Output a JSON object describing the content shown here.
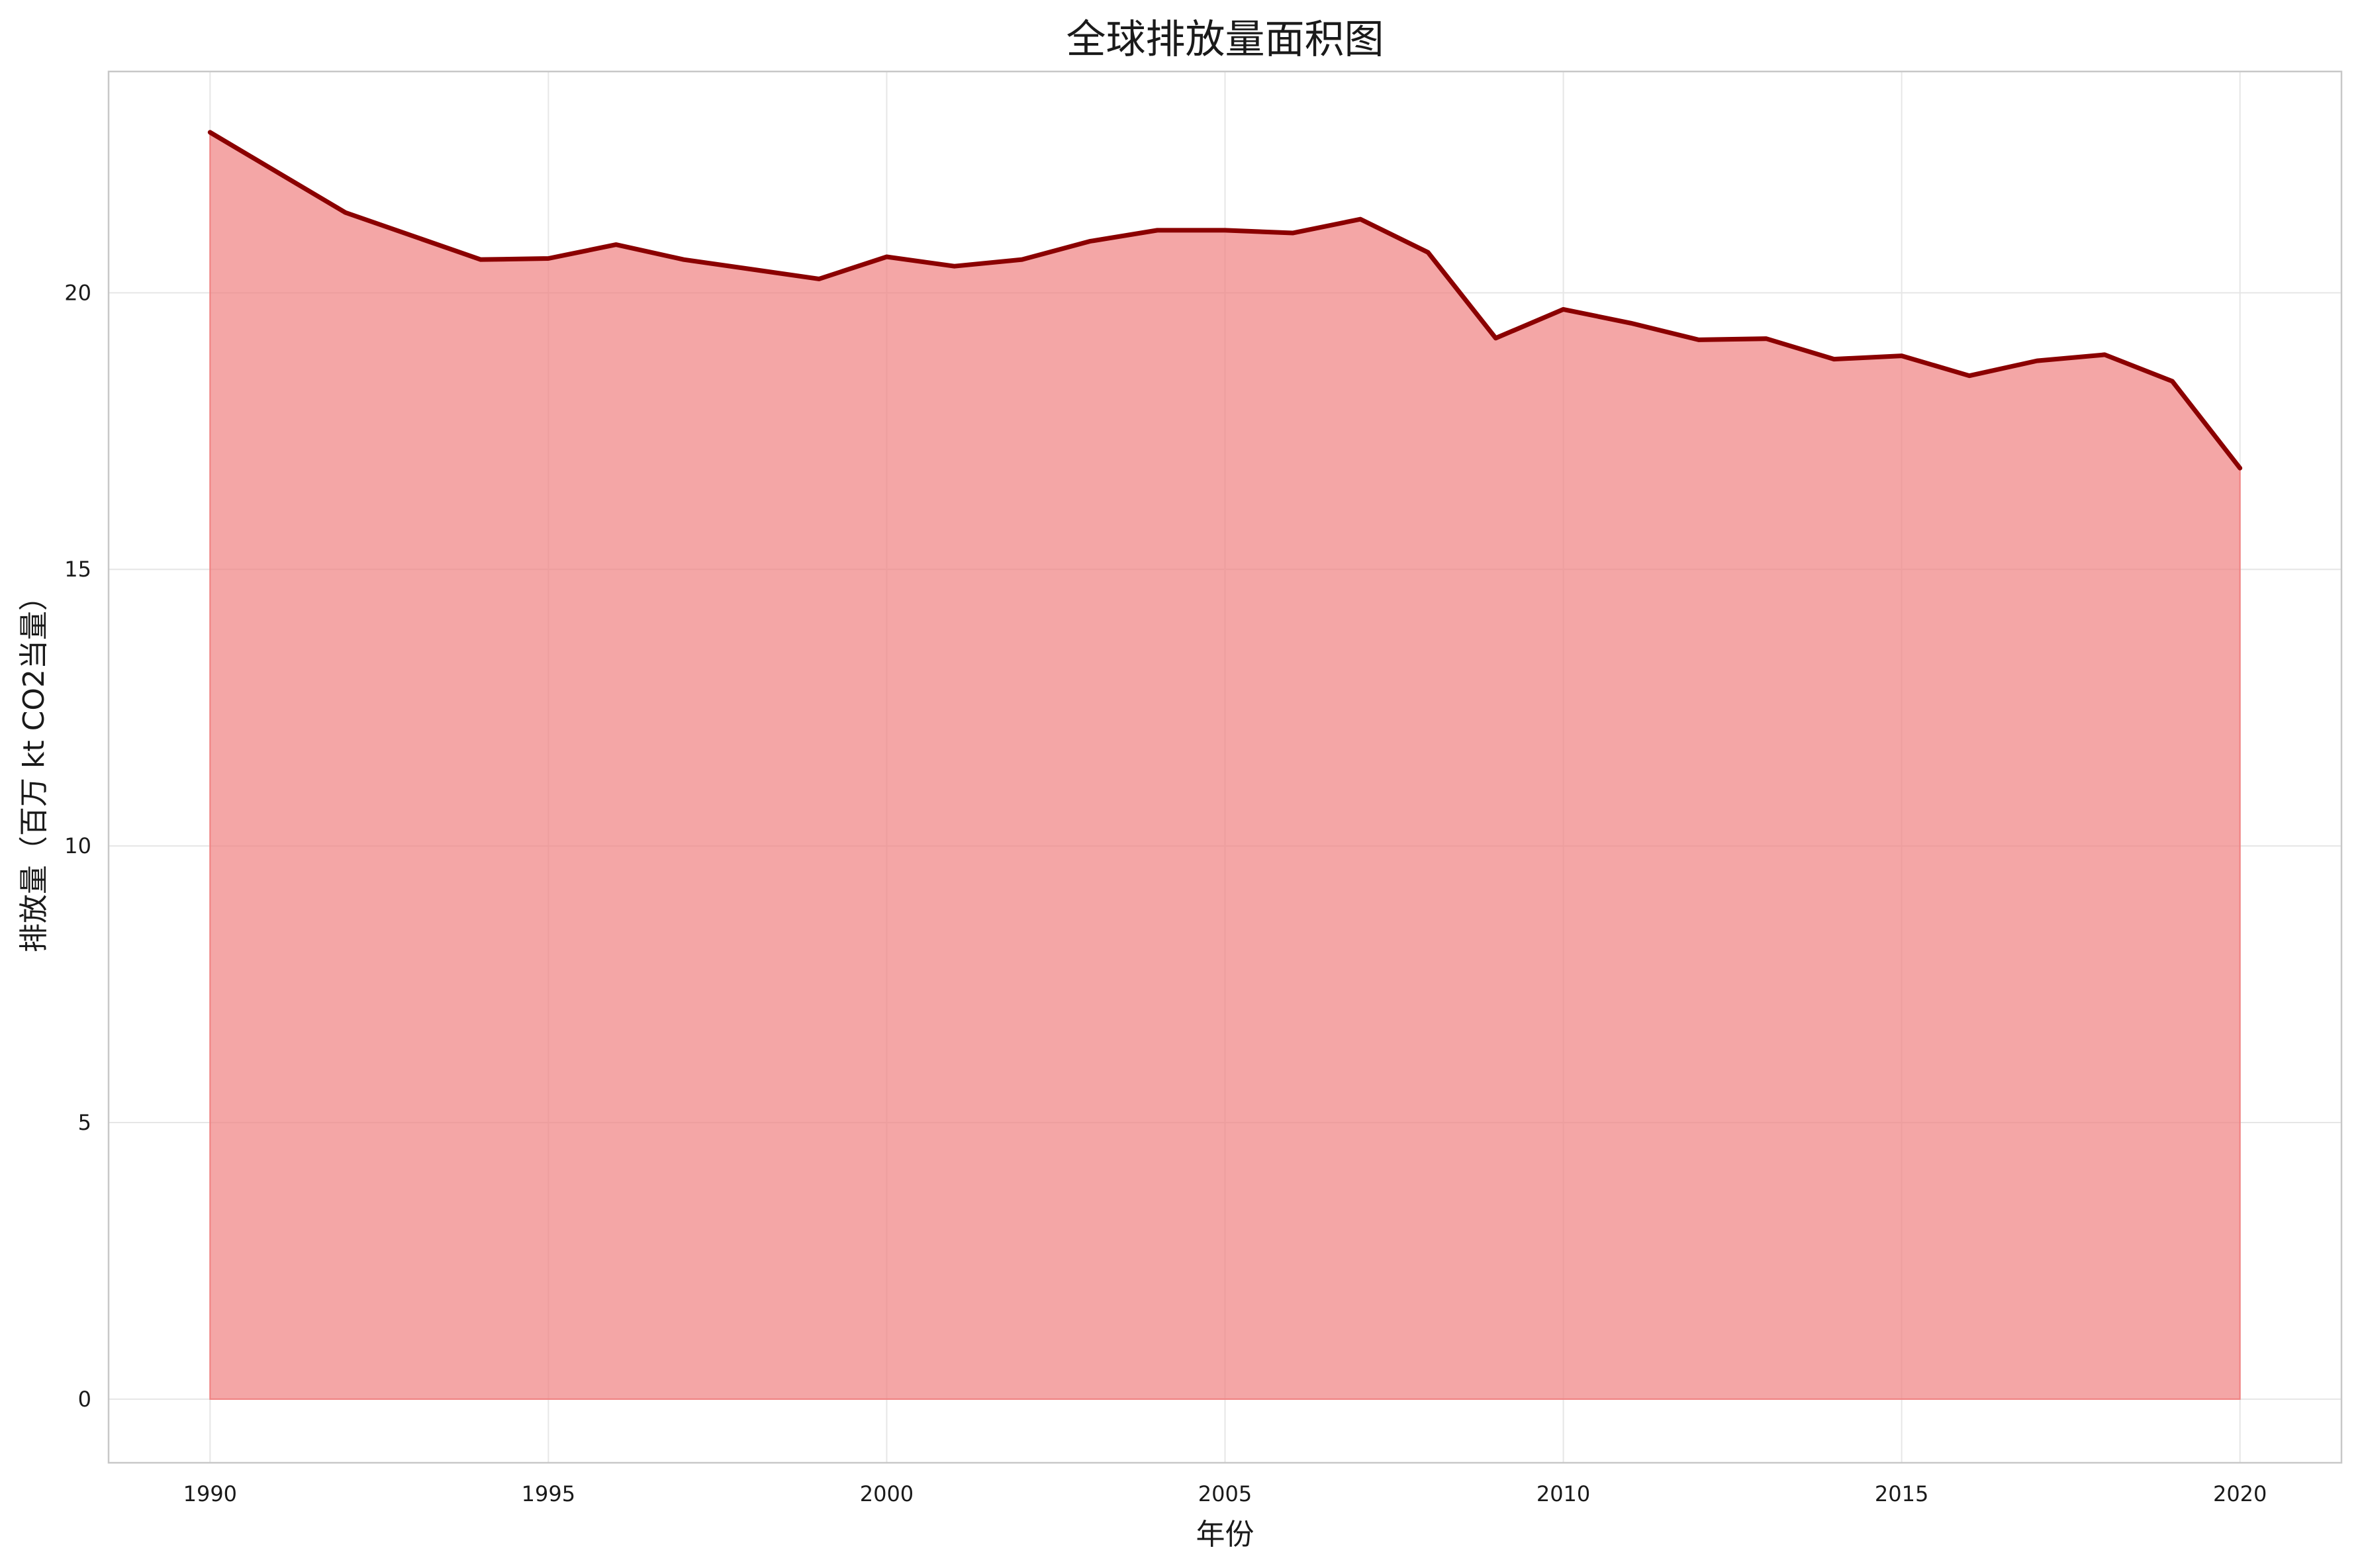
{
  "chart_data": {
    "type": "area",
    "title": "全球排放量面积图",
    "xlabel": "年份",
    "ylabel": "排放量（百万 kt CO2当量）",
    "xlim": [
      1988.5,
      2021.5
    ],
    "ylim": [
      -1.15,
      24.0
    ],
    "x_ticks": [
      1990,
      1995,
      2000,
      2005,
      2010,
      2015,
      2020
    ],
    "y_ticks": [
      0,
      5,
      10,
      15,
      20
    ],
    "grid": true,
    "legend": "none",
    "colors": {
      "fill": "#f08080",
      "line": "#8b0000",
      "grid": "#e6e6e6",
      "frame": "#c8c8c8"
    },
    "x": [
      1990,
      1992,
      1994,
      1995,
      1996,
      1997,
      1999,
      2000,
      2001,
      2002,
      2003,
      2004,
      2005,
      2006,
      2007,
      2008,
      2009,
      2010,
      2011,
      2012,
      2013,
      2014,
      2015,
      2016,
      2017,
      2018,
      2019,
      2020
    ],
    "series": [
      {
        "values": [
          22.9,
          21.45,
          20.6,
          20.62,
          20.87,
          20.6,
          20.25,
          20.65,
          20.48,
          20.6,
          20.93,
          21.13,
          21.13,
          21.08,
          21.33,
          20.73,
          19.18,
          19.7,
          19.45,
          19.15,
          19.17,
          18.8,
          18.86,
          18.5,
          18.77,
          18.88,
          18.4,
          16.83
        ]
      }
    ]
  }
}
